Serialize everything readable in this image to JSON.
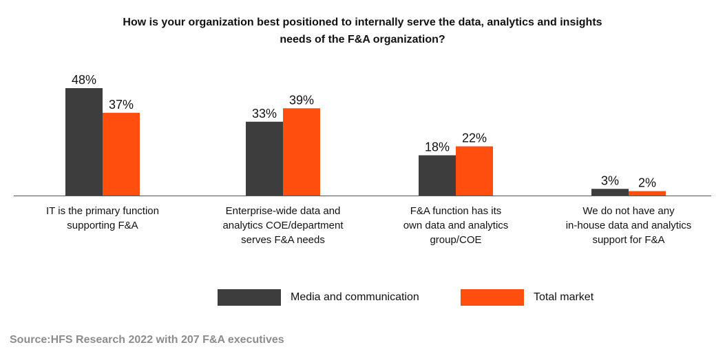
{
  "chart_data": {
    "type": "bar",
    "title_lines": [
      "How is your organization best positioned to internally serve the data, analytics and insights",
      "needs of the F&A organization?"
    ],
    "categories": [
      [
        "IT is the primary function",
        "supporting F&A"
      ],
      [
        "Enterprise-wide data and",
        "analytics COE/department",
        "serves F&A needs"
      ],
      [
        "F&A function has its",
        "own data and analytics",
        "group/COE"
      ],
      [
        "We do not have any",
        "in-house data and analytics",
        "support for F&A"
      ]
    ],
    "series": [
      {
        "name": "Media and communication",
        "color": "#3d3d3d",
        "values": [
          48,
          33,
          18,
          3
        ]
      },
      {
        "name": "Total market",
        "color": "#ff4e0e",
        "values": [
          37,
          39,
          22,
          2
        ]
      }
    ],
    "value_suffix": "%",
    "ylim": [
      0,
      50
    ],
    "xlabel": "",
    "ylabel": "",
    "legend_position": "bottom"
  },
  "source": "Source:HFS Research 2022 with 207 F&A executives"
}
